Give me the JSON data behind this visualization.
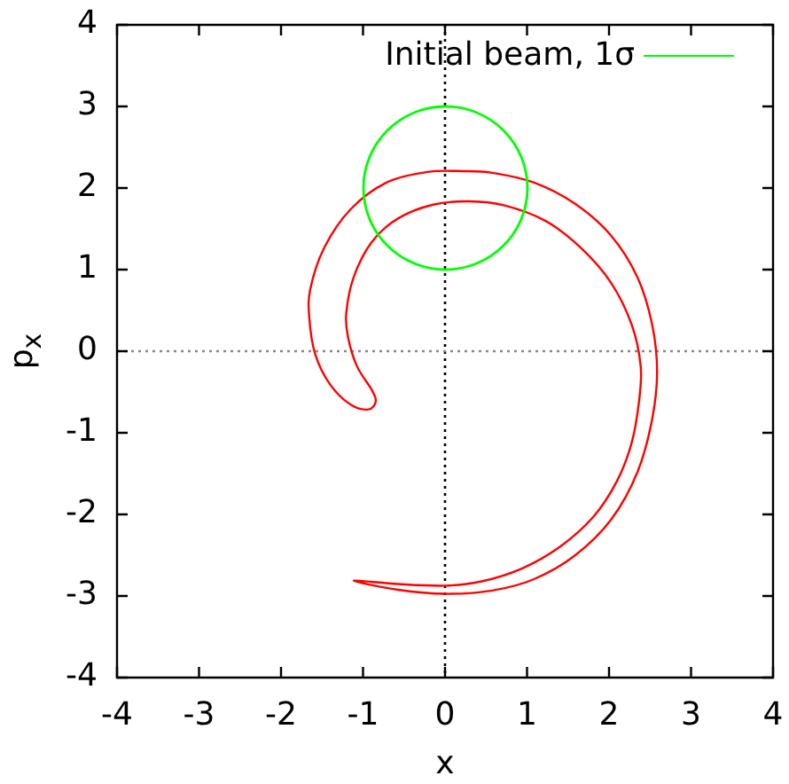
{
  "chart_data": {
    "type": "line",
    "xlabel": "x",
    "ylabel": "p$_{x}$",
    "xlim": [
      -4,
      4
    ],
    "ylim": [
      -4,
      4
    ],
    "xticks": [
      -4,
      -3,
      -2,
      -1,
      0,
      1,
      2,
      3,
      4
    ],
    "yticks": [
      -4,
      -3,
      -2,
      -1,
      0,
      1,
      2,
      3,
      4
    ],
    "ref_lines": [
      {
        "axis": "x",
        "value": 0,
        "color": "#000000",
        "line_style": "dotted"
      },
      {
        "axis": "y",
        "value": 0,
        "color": "#888888",
        "line_style": "dotted"
      }
    ],
    "annotations": [
      "Initial beam, 1σ"
    ]
  }
}
